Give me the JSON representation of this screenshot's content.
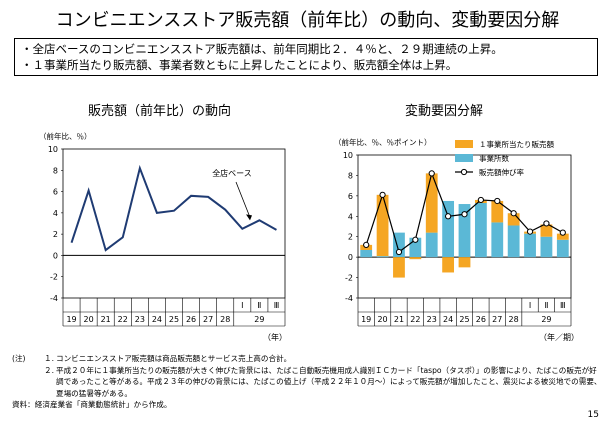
{
  "title": "コンビニエンスストア販売額（前年比）の動向、変動要因分解",
  "summary": [
    "・全店ベースのコンビニエンスストア販売額は、前年同期比２．４％と、２９期連続の上昇。",
    "・１事業所当たり販売額、事業者数ともに上昇したことにより、販売額全体は上昇。"
  ],
  "chart_data": [
    {
      "type": "line",
      "title": "販売額（前年比）の動向",
      "ylabel": "（前年比、％）",
      "xlabel": "（年）",
      "ylim": [
        -4,
        10
      ],
      "yticks": [
        "10",
        "8",
        "6",
        "4",
        "2",
        "0",
        "-2",
        "-4"
      ],
      "categories": [
        "19",
        "20",
        "21",
        "22",
        "23",
        "24",
        "25",
        "26",
        "27",
        "28",
        "Ⅰ",
        "Ⅱ",
        "Ⅲ"
      ],
      "year_group_label": "29",
      "series": [
        {
          "name": "全店ベース",
          "values": [
            1.2,
            6.1,
            0.5,
            1.7,
            8.2,
            4.0,
            4.2,
            5.6,
            5.5,
            4.3,
            2.5,
            3.3,
            2.4
          ]
        }
      ],
      "annotation": "全店ベース"
    },
    {
      "type": "bar",
      "title": "変動要因分解",
      "ylabel": "（前年比、％、％ポイント）",
      "xlabel": "（年／期）",
      "ylim": [
        -4,
        10
      ],
      "yticks": [
        "10",
        "8",
        "6",
        "4",
        "2",
        "0",
        "-2",
        "-4"
      ],
      "categories": [
        "19",
        "20",
        "21",
        "22",
        "23",
        "24",
        "25",
        "26",
        "27",
        "28",
        "Ⅰ",
        "Ⅱ",
        "Ⅲ"
      ],
      "year_group_label": "29",
      "legend": [
        "１事業所当たり販売額",
        "事業所数",
        "販売額伸び率"
      ],
      "legend_position": "top-right",
      "series": [
        {
          "name": "１事業所当たり販売額",
          "values": [
            0.5,
            6.0,
            -2.0,
            -0.2,
            5.8,
            -1.5,
            -1.0,
            0.3,
            2.1,
            1.2,
            0.2,
            1.2,
            0.6
          ]
        },
        {
          "name": "事業所数",
          "values": [
            0.7,
            0.1,
            2.4,
            1.9,
            2.4,
            5.5,
            5.2,
            5.3,
            3.4,
            3.1,
            2.3,
            2.0,
            1.7
          ]
        },
        {
          "name": "販売額伸び率",
          "values": [
            1.2,
            6.1,
            0.5,
            1.7,
            8.2,
            4.0,
            4.2,
            5.6,
            5.5,
            4.3,
            2.5,
            3.3,
            2.4
          ]
        }
      ],
      "colors": {
        "per_store": "#f5a623",
        "stores": "#5bb8d6",
        "line": "#000000"
      }
    }
  ],
  "notes": {
    "label": "(注)",
    "items": [
      {
        "num": "１.",
        "text": "コンビニエンスストア販売額は商品販売額とサービス売上高の合計。"
      },
      {
        "num": "２.",
        "text": "平成２０年に１事業所当たりの販売額が大きく伸びた背景には、たばこ自動販売機用成人識別ＩＣカード「taspo（タスポ）」の影響により、たばこの販売が好調であったこと等がある。平成２３年の伸びの背景には、たばこの値上げ（平成２２年１０月～）によって販売額が増加したこと、震災による被災地での需要、夏場の猛暑等がある。"
      }
    ],
    "source": "資料：経済産業省「商業動態統計」から作成。"
  },
  "page_number": "15"
}
